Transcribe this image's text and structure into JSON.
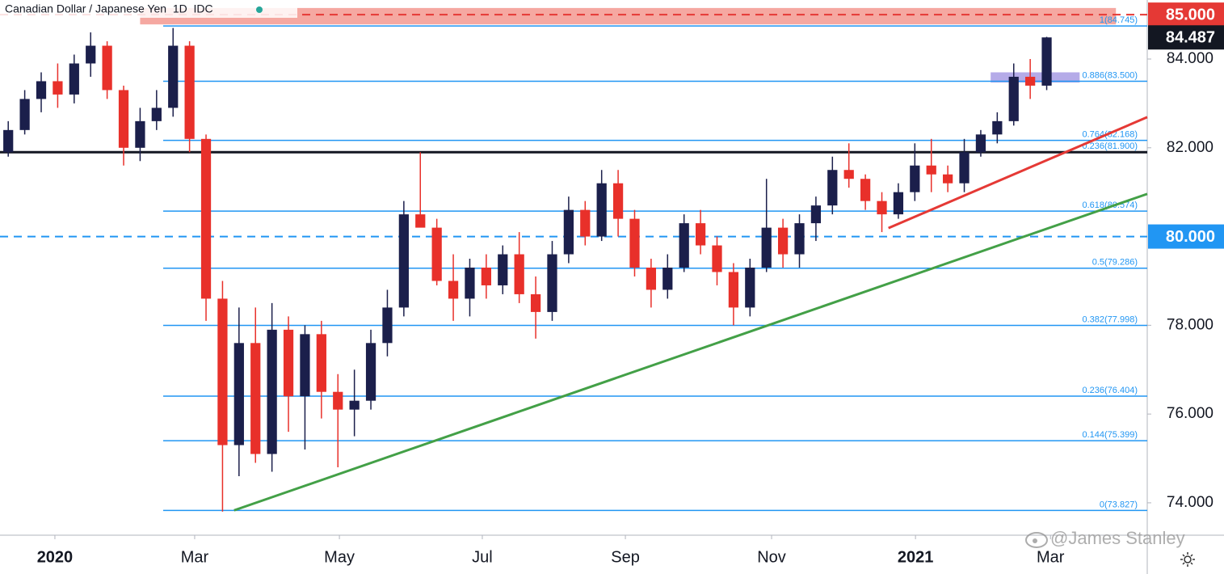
{
  "chart_data": {
    "type": "candlestick",
    "title": "Canadian Dollar / Japanese Yen  1D  IDC",
    "watermark": "@James Stanley",
    "up_color": "#1b1f4b",
    "down_color": "#e8302a",
    "categories": [
      null,
      null,
      null,
      null,
      null,
      null,
      null,
      null,
      null,
      null,
      null,
      null,
      null,
      null,
      null,
      null,
      null,
      null,
      null,
      null,
      null,
      null,
      null,
      null,
      null,
      null,
      null,
      null,
      null,
      null,
      null,
      null,
      null,
      null,
      null,
      null,
      null,
      null,
      null,
      null,
      null,
      null,
      null,
      null,
      null,
      null,
      null,
      null,
      null,
      null,
      null,
      null,
      null,
      null,
      null,
      null,
      null,
      null,
      null,
      null,
      null,
      null,
      null,
      null
    ],
    "open": [
      81.9,
      82.4,
      83.1,
      83.5,
      83.2,
      83.9,
      84.3,
      83.3,
      82.0,
      82.6,
      82.9,
      84.3,
      82.2,
      78.6,
      75.3,
      77.6,
      75.1,
      77.9,
      76.4,
      77.8,
      76.5,
      76.1,
      76.3,
      77.6,
      78.4,
      80.5,
      80.2,
      79.0,
      78.6,
      79.3,
      78.9,
      79.6,
      78.7,
      78.3,
      79.6,
      80.6,
      80.0,
      81.2,
      80.4,
      79.3,
      78.8,
      79.3,
      80.3,
      79.8,
      79.2,
      78.4,
      79.3,
      80.2,
      79.6,
      80.3,
      80.7,
      81.5,
      81.3,
      80.8,
      80.5,
      81.0,
      81.6,
      81.4,
      81.2,
      81.9,
      82.3,
      82.6,
      83.6,
      83.4
    ],
    "high": [
      82.6,
      83.3,
      83.7,
      83.9,
      84.1,
      84.6,
      84.4,
      83.4,
      82.9,
      83.3,
      84.7,
      84.4,
      82.3,
      79.0,
      78.4,
      78.4,
      78.5,
      78.2,
      78.0,
      78.1,
      76.9,
      77.0,
      77.9,
      78.8,
      80.8,
      81.9,
      80.4,
      79.6,
      79.5,
      79.6,
      79.8,
      80.1,
      79.1,
      79.9,
      80.9,
      80.8,
      81.5,
      81.5,
      80.6,
      79.5,
      79.6,
      80.5,
      80.6,
      80.0,
      79.4,
      79.5,
      81.3,
      80.4,
      80.5,
      80.9,
      81.8,
      82.1,
      81.4,
      81.0,
      81.2,
      82.1,
      82.2,
      81.6,
      82.2,
      82.4,
      82.8,
      83.9,
      84.0,
      84.5
    ],
    "low": [
      81.8,
      82.3,
      82.8,
      82.9,
      83.0,
      83.6,
      83.1,
      81.6,
      81.7,
      82.4,
      82.7,
      81.9,
      78.1,
      73.8,
      74.6,
      74.9,
      74.7,
      75.6,
      75.2,
      75.9,
      74.8,
      75.5,
      76.1,
      77.3,
      78.2,
      80.3,
      78.9,
      78.1,
      78.2,
      78.6,
      78.7,
      78.5,
      77.7,
      78.1,
      79.4,
      79.8,
      79.9,
      80.0,
      79.1,
      78.4,
      78.6,
      79.2,
      79.6,
      78.9,
      78.0,
      78.2,
      79.2,
      79.3,
      79.3,
      79.9,
      80.5,
      81.1,
      80.6,
      80.1,
      80.4,
      80.8,
      81.0,
      81.0,
      81.0,
      81.8,
      82.1,
      82.5,
      83.1,
      83.3
    ],
    "close": [
      82.4,
      83.1,
      83.5,
      83.2,
      83.9,
      84.3,
      83.3,
      82.0,
      82.6,
      82.9,
      84.3,
      82.2,
      78.6,
      75.3,
      77.6,
      75.1,
      77.9,
      76.4,
      77.8,
      76.5,
      76.1,
      76.3,
      77.6,
      78.4,
      80.5,
      80.2,
      79.0,
      78.6,
      79.3,
      78.9,
      79.6,
      78.7,
      78.3,
      79.6,
      80.6,
      80.0,
      81.2,
      80.4,
      79.3,
      78.8,
      79.3,
      80.3,
      79.8,
      79.2,
      78.4,
      79.3,
      80.2,
      79.6,
      80.3,
      80.7,
      81.5,
      81.3,
      80.8,
      80.5,
      81.0,
      81.6,
      81.4,
      81.2,
      81.9,
      82.3,
      82.6,
      83.6,
      83.4,
      84.487
    ],
    "xlim": [
      -0.5,
      69.1
    ],
    "xticks": [
      {
        "value": 2.83,
        "label": "2020"
      },
      {
        "value": 11.31,
        "label": "Mar"
      },
      {
        "value": 20.09,
        "label": "May"
      },
      {
        "value": 28.76,
        "label": "Jul"
      },
      {
        "value": 37.44,
        "label": "Sep"
      },
      {
        "value": 46.31,
        "label": "Nov"
      },
      {
        "value": 55.04,
        "label": "2021"
      },
      {
        "value": 63.23,
        "label": "Mar"
      }
    ],
    "ylim": [
      73.27,
      85.33
    ],
    "yticks": [
      {
        "value": 84,
        "label": "84.000"
      },
      {
        "value": 82,
        "label": "82.000"
      },
      {
        "value": 78,
        "label": "78.000"
      },
      {
        "value": 76,
        "label": "76.000"
      },
      {
        "value": 74,
        "label": "74.000"
      }
    ],
    "level_color": "#2196f3",
    "levels": [
      {
        "value": 84.745,
        "label": "1(84.745)"
      },
      {
        "value": 83.5,
        "label": "0.886(83.500)"
      },
      {
        "value": 82.168,
        "label": "0.764(82.168)"
      },
      {
        "value": 81.9,
        "label": "0.236(81.900)"
      },
      {
        "value": 80.574,
        "label": "0.618(80.574)"
      },
      {
        "value": 79.286,
        "label": "0.5(79.286)"
      },
      {
        "value": 77.998,
        "label": "0.382(77.998)"
      },
      {
        "value": 76.404,
        "label": "0.236(76.404)"
      },
      {
        "value": 75.399,
        "label": "0.144(75.399)"
      },
      {
        "value": 73.827,
        "label": "0(73.827)"
      }
    ],
    "hlines": [
      {
        "value": 81.9,
        "color": "#131722",
        "dashed": false
      },
      {
        "value": 80,
        "color": "#2196f3",
        "dashed": true
      },
      {
        "value": 85,
        "color": "#e53935",
        "dashed": true
      }
    ],
    "zones": [
      {
        "low": 84.78,
        "high": 85.15,
        "x": [
          8.0,
          67.2
        ],
        "color": "#f28b82"
      },
      {
        "low": 83.47,
        "high": 83.7,
        "x": [
          59.6,
          65.0
        ],
        "color": "#9c8fe0"
      }
    ],
    "trendlines": [
      {
        "x": [
          13.7,
          69.1
        ],
        "y": [
          73.83,
          80.96
        ],
        "color": "#43a047"
      },
      {
        "x": [
          53.4,
          69.1
        ],
        "y": [
          80.19,
          82.69
        ],
        "color": "#e53935"
      }
    ],
    "price_tags": [
      {
        "value": 85,
        "label": "85.000",
        "color": "#e53935"
      },
      {
        "value": 84.487,
        "label": "84.487",
        "color": "#131722"
      },
      {
        "value": 80,
        "label": "80.000",
        "color": "#2196f3"
      }
    ]
  }
}
